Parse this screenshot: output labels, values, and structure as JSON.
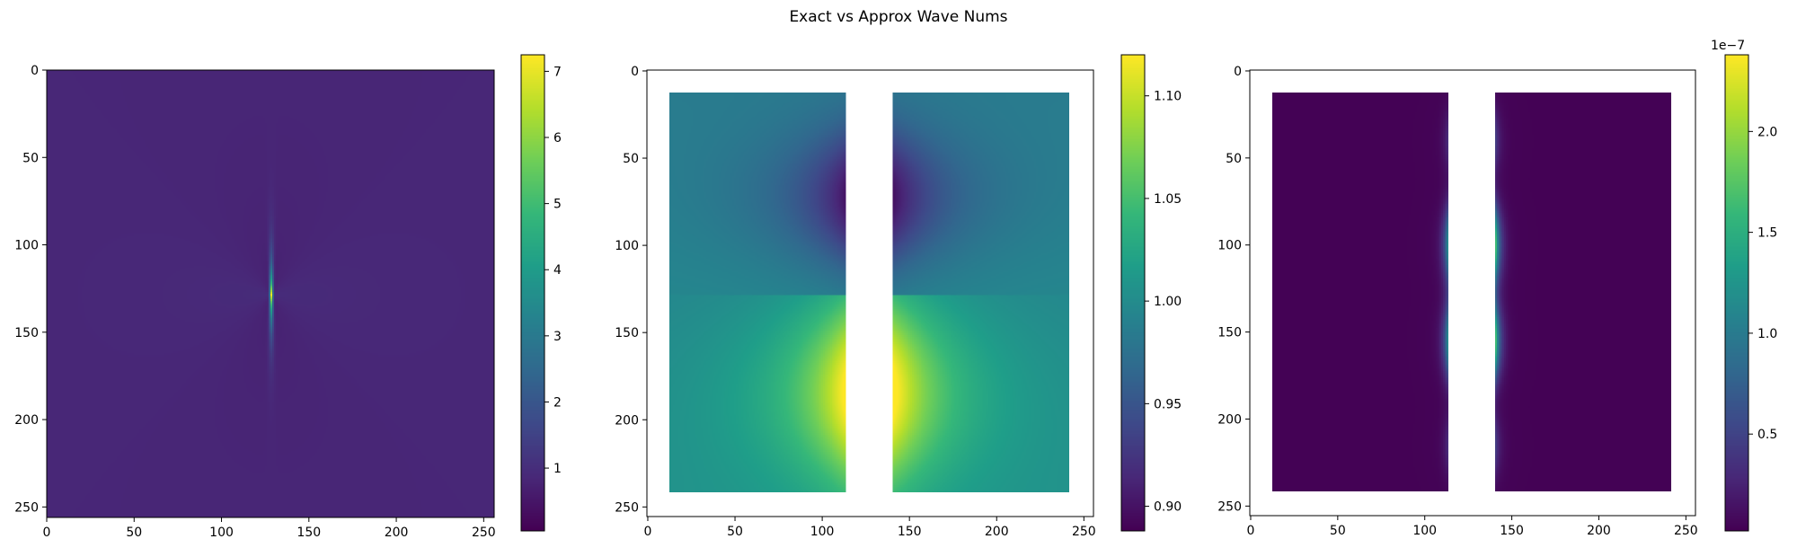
{
  "figure": {
    "title": "Exact vs Approx Wave Nums"
  },
  "colormap": {
    "name": "viridis",
    "stops": [
      "#440154",
      "#482878",
      "#3e4989",
      "#31688e",
      "#26828e",
      "#1f9e89",
      "#35b779",
      "#6ece58",
      "#b5de2b",
      "#fde725"
    ],
    "mask_color": "#ffffff"
  },
  "chart_data": [
    {
      "type": "heatmap",
      "title": "",
      "grid": false,
      "x_ticks": [
        "0",
        "50",
        "100",
        "150",
        "200",
        "250"
      ],
      "y_ticks": [
        "0",
        "50",
        "100",
        "150",
        "200",
        "250"
      ],
      "xlim": [
        0,
        256
      ],
      "ylim": [
        256,
        0
      ],
      "image_extent": {
        "x": [
          0,
          256
        ],
        "y": [
          0,
          256
        ]
      },
      "colorbar": {
        "range": [
          0.05,
          7.25
        ],
        "ticks": [
          "1",
          "2",
          "3",
          "4",
          "5",
          "6",
          "7"
        ],
        "tick_values": [
          1,
          2,
          3,
          4,
          5,
          6,
          7
        ],
        "offset_label": ""
      },
      "field": {
        "kind": "singular_wave",
        "background": 0.82,
        "center": [
          128,
          128
        ],
        "peak": 7.2
      }
    },
    {
      "type": "heatmap",
      "title": "",
      "grid": false,
      "x_ticks": [
        "0",
        "50",
        "100",
        "150",
        "200",
        "250"
      ],
      "y_ticks": [
        "0",
        "50",
        "100",
        "150",
        "200",
        "250"
      ],
      "xlim": [
        -0.5,
        255.5
      ],
      "ylim": [
        255.5,
        -0.5
      ],
      "image_extent": {
        "x": [
          13,
          242
        ],
        "y": [
          13,
          242
        ]
      },
      "masked_columns": [
        114,
        141
      ],
      "colorbar": {
        "range": [
          0.888,
          1.12
        ],
        "ticks": [
          "0.90",
          "0.95",
          "1.00",
          "1.05",
          "1.10"
        ],
        "tick_values": [
          0.9,
          0.95,
          1.0,
          1.05,
          1.1
        ],
        "offset_label": ""
      },
      "field": {
        "kind": "ratio",
        "base": 1.0,
        "center_row": 128,
        "max": 1.118,
        "min": 0.89
      }
    },
    {
      "type": "heatmap",
      "title": "",
      "grid": false,
      "x_ticks": [
        "0",
        "50",
        "100",
        "150",
        "200",
        "250"
      ],
      "y_ticks": [
        "0",
        "50",
        "100",
        "150",
        "200",
        "250"
      ],
      "xlim": [
        -0.5,
        255.5
      ],
      "ylim": [
        255.5,
        -0.5
      ],
      "image_extent": {
        "x": [
          13,
          242
        ],
        "y": [
          13,
          242
        ]
      },
      "masked_columns": [
        114,
        141
      ],
      "colorbar": {
        "range": [
          0.02,
          2.38
        ],
        "ticks": [
          "0.5",
          "1.0",
          "1.5",
          "2.0"
        ],
        "tick_values": [
          0.5,
          1.0,
          1.5,
          2.0
        ],
        "offset_label": "1e−7"
      },
      "field": {
        "kind": "error",
        "scale": "1e-7",
        "peak_rows": [
          100,
          155
        ],
        "max": 2.38
      }
    }
  ]
}
